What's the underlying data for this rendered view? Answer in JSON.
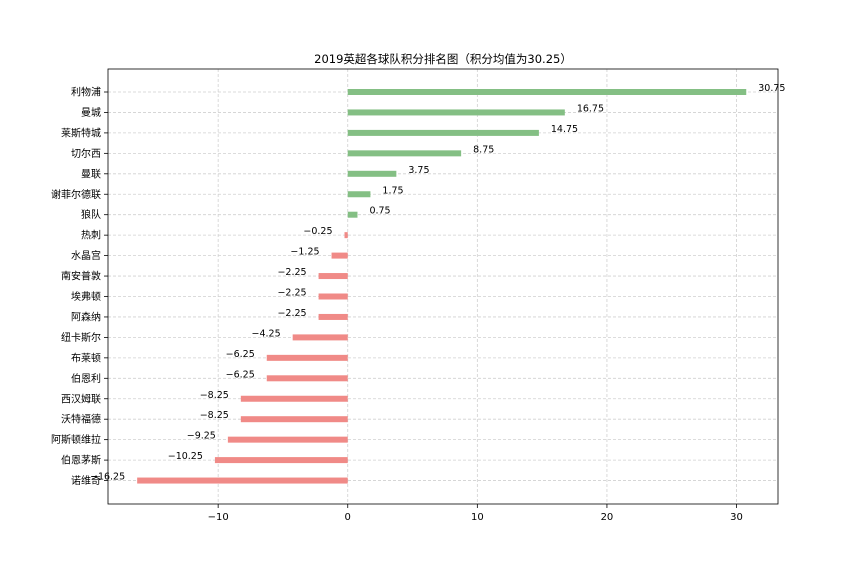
{
  "chart_data": {
    "type": "bar",
    "orientation": "horizontal",
    "title": "2019英超各球队积分排名图（积分均值为30.25）",
    "xlabel": "",
    "ylabel": "",
    "xlim": [
      -18.5,
      33.2
    ],
    "xticks": [
      -10,
      0,
      10,
      20,
      30
    ],
    "xtick_labels": [
      "−10",
      "0",
      "10",
      "20",
      "30"
    ],
    "grid": true,
    "categories": [
      "利物浦",
      "曼城",
      "莱斯特城",
      "切尔西",
      "曼联",
      "谢菲尔德联",
      "狼队",
      "热刺",
      "水晶宫",
      "南安普敦",
      "埃弗顿",
      "阿森纳",
      "纽卡斯尔",
      "布莱顿",
      "伯恩利",
      "西汉姆联",
      "沃特福德",
      "阿斯顿维拉",
      "伯恩茅斯",
      "诺维奇"
    ],
    "values": [
      30.75,
      16.75,
      14.75,
      8.75,
      3.75,
      1.75,
      0.75,
      -0.25,
      -1.25,
      -2.25,
      -2.25,
      -2.25,
      -4.25,
      -6.25,
      -6.25,
      -8.25,
      -8.25,
      -9.25,
      -10.25,
      -16.25
    ],
    "value_labels": [
      "30.75",
      "16.75",
      "14.75",
      "8.75",
      "3.75",
      "1.75",
      "0.75",
      "−0.25",
      "−1.25",
      "−2.25",
      "−2.25",
      "−2.25",
      "−4.25",
      "−6.25",
      "−6.25",
      "−8.25",
      "−8.25",
      "−9.25",
      "−10.25",
      "−16.25"
    ],
    "colors": {
      "positive": "#84bf84",
      "negative": "#f08a87",
      "grid": "#d0d0d0",
      "axis": "#000000"
    }
  }
}
